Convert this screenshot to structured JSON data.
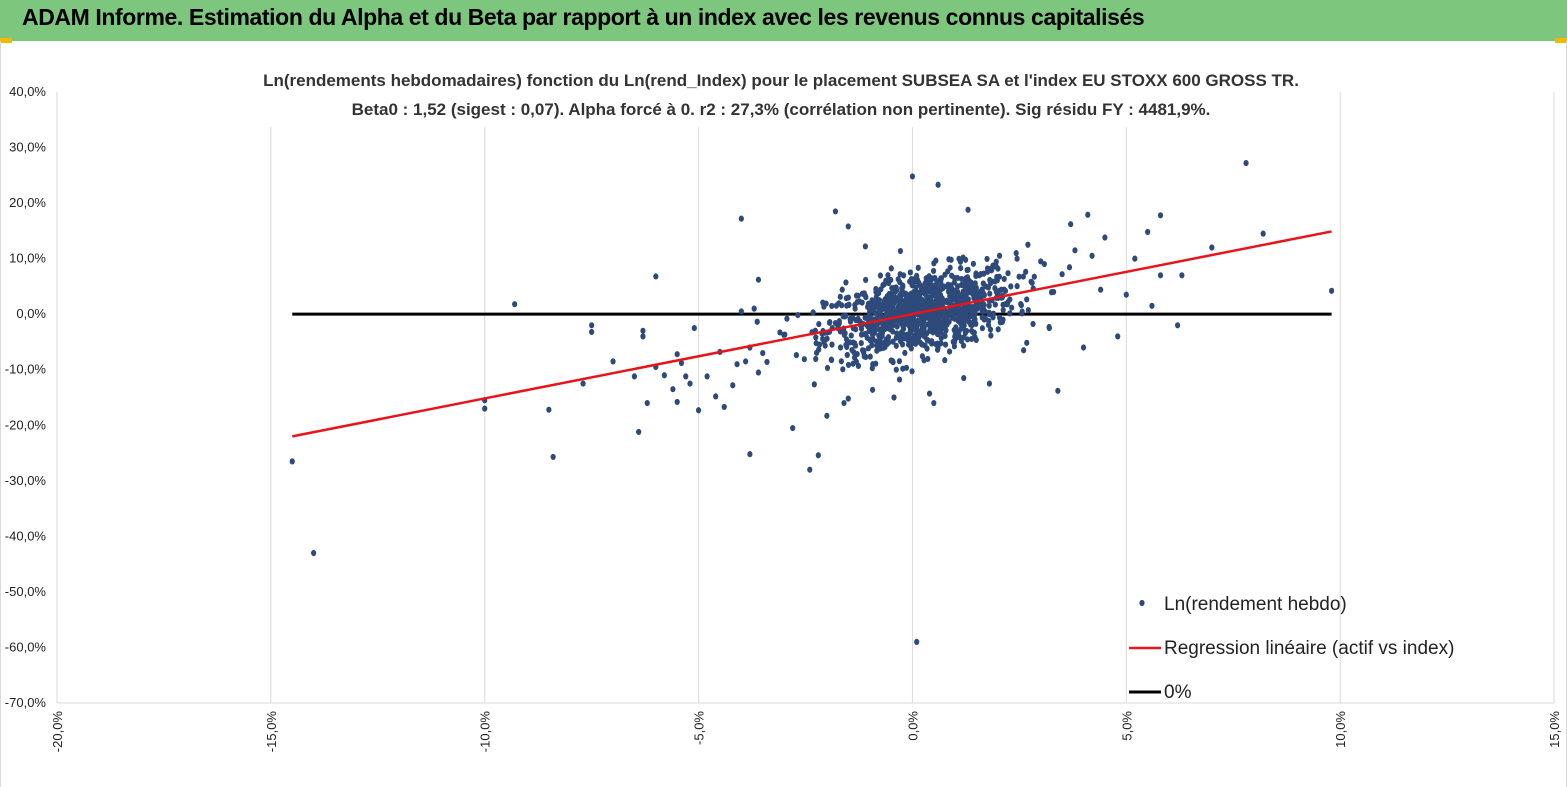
{
  "header": {
    "title": "ADAM Informe. Estimation du Alpha et du Beta par rapport à un index avec les revenus connus capitalisés"
  },
  "colors": {
    "header_bg": "#7dc67e",
    "accent_corner": "#f5b800",
    "points": "#2e4a7a",
    "regression": "#e8141b",
    "zero_line": "#000000",
    "grid": "#d9d9d9"
  },
  "chart_data": {
    "type": "scatter",
    "title_line1": "Ln(rendements hebdomadaires) fonction du Ln(rend_Index) pour le placement SUBSEA SA et l'index EU STOXX 600 GROSS TR.",
    "title_line2": "Beta0 : 1,52 (sigest : 0,07). Alpha forcé à 0. r2 : 27,3% (corrélation non pertinente). Sig résidu FY : 4481,9%.",
    "xlim": [
      -0.2,
      0.15
    ],
    "ylim": [
      -0.7,
      0.4
    ],
    "x_ticks": [
      "-20,0%",
      "-15,0%",
      "-10,0%",
      "-5,0%",
      "0,0%",
      "5,0%",
      "10,0%",
      "15,0%"
    ],
    "x_tick_values": [
      -0.2,
      -0.15,
      -0.1,
      -0.05,
      0.0,
      0.05,
      0.1,
      0.15
    ],
    "y_ticks": [
      "40,0%",
      "30,0%",
      "20,0%",
      "10,0%",
      "0,0%",
      "-10,0%",
      "-20,0%",
      "-30,0%",
      "-40,0%",
      "-50,0%",
      "-60,0%",
      "-70,0%"
    ],
    "y_tick_values": [
      0.4,
      0.3,
      0.2,
      0.1,
      0.0,
      -0.1,
      -0.2,
      -0.3,
      -0.4,
      -0.5,
      -0.6,
      -0.7
    ],
    "grid": "vertical",
    "legend_position": "bottom-right",
    "series": [
      {
        "name": "Ln(rendement hebdo)",
        "kind": "scatter",
        "outliers": [
          [
            -0.145,
            -0.265
          ],
          [
            -0.14,
            -0.43
          ],
          [
            -0.1,
            -0.17
          ],
          [
            -0.1,
            -0.155
          ],
          [
            -0.093,
            0.018
          ],
          [
            -0.085,
            -0.172
          ],
          [
            -0.084,
            -0.257
          ],
          [
            -0.075,
            -0.02
          ],
          [
            -0.075,
            -0.032
          ],
          [
            -0.077,
            -0.125
          ],
          [
            -0.07,
            -0.085
          ],
          [
            -0.065,
            -0.112
          ],
          [
            -0.064,
            -0.212
          ],
          [
            -0.063,
            -0.04
          ],
          [
            -0.063,
            -0.03
          ],
          [
            -0.062,
            -0.16
          ],
          [
            -0.06,
            0.068
          ],
          [
            -0.06,
            -0.095
          ],
          [
            -0.058,
            -0.11
          ],
          [
            -0.056,
            -0.135
          ],
          [
            -0.055,
            -0.158
          ],
          [
            -0.055,
            -0.072
          ],
          [
            -0.054,
            -0.088
          ],
          [
            -0.053,
            -0.112
          ],
          [
            -0.052,
            -0.125
          ],
          [
            -0.051,
            -0.025
          ],
          [
            -0.05,
            -0.173
          ],
          [
            -0.048,
            -0.112
          ],
          [
            -0.046,
            -0.148
          ],
          [
            -0.045,
            -0.068
          ],
          [
            -0.044,
            -0.167
          ],
          [
            -0.042,
            -0.128
          ],
          [
            -0.041,
            -0.09
          ],
          [
            -0.04,
            0.005
          ],
          [
            -0.039,
            -0.085
          ],
          [
            -0.038,
            -0.06
          ],
          [
            -0.037,
            0.01
          ],
          [
            -0.036,
            -0.105
          ],
          [
            -0.035,
            -0.07
          ],
          [
            -0.034,
            -0.086
          ],
          [
            -0.04,
            0.172
          ],
          [
            -0.038,
            -0.252
          ],
          [
            -0.036,
            0.062
          ],
          [
            -0.028,
            -0.205
          ],
          [
            -0.024,
            -0.28
          ],
          [
            -0.022,
            -0.254
          ],
          [
            -0.02,
            -0.183
          ],
          [
            -0.018,
            0.185
          ],
          [
            -0.016,
            -0.16
          ],
          [
            -0.015,
            -0.152
          ],
          [
            -0.015,
            0.158
          ],
          [
            -0.011,
            0.122
          ],
          [
            0.0,
            0.248
          ],
          [
            0.006,
            0.233
          ],
          [
            0.005,
            -0.16
          ],
          [
            0.013,
            0.188
          ],
          [
            0.001,
            -0.59
          ],
          [
            0.004,
            -0.143
          ],
          [
            0.012,
            -0.115
          ],
          [
            0.018,
            -0.125
          ],
          [
            0.032,
            -0.025
          ],
          [
            0.034,
            -0.138
          ],
          [
            0.037,
            0.162
          ],
          [
            0.04,
            -0.06
          ],
          [
            0.041,
            0.179
          ],
          [
            0.042,
            0.105
          ],
          [
            0.044,
            0.044
          ],
          [
            0.045,
            0.138
          ],
          [
            0.048,
            -0.04
          ],
          [
            0.05,
            0.035
          ],
          [
            0.052,
            0.1
          ],
          [
            0.055,
            0.148
          ],
          [
            0.056,
            0.015
          ],
          [
            0.058,
            0.178
          ],
          [
            0.058,
            0.07
          ],
          [
            0.062,
            -0.02
          ],
          [
            0.063,
            0.07
          ],
          [
            0.07,
            0.12
          ],
          [
            0.078,
            0.272
          ],
          [
            0.082,
            0.145
          ],
          [
            0.098,
            0.042
          ],
          [
            0.03,
            0.095
          ],
          [
            0.035,
            0.072
          ],
          [
            0.038,
            0.115
          ],
          [
            0.033,
            0.04
          ],
          [
            0.027,
            0.125
          ],
          [
            0.026,
            -0.065
          ],
          [
            0.023,
            0.05
          ]
        ],
        "cluster": {
          "count": 1050,
          "x_center": 0.002,
          "x_sd": 0.011,
          "beta": 1.52,
          "resid_sd": 0.036
        }
      },
      {
        "name": "Regression linéaire (actif vs index)",
        "kind": "line",
        "x": [
          -0.145,
          0.098
        ],
        "y": [
          -0.22,
          0.149
        ]
      },
      {
        "name": "0%",
        "kind": "line",
        "x": [
          -0.145,
          0.098
        ],
        "y": [
          0.0,
          0.0
        ]
      }
    ]
  }
}
